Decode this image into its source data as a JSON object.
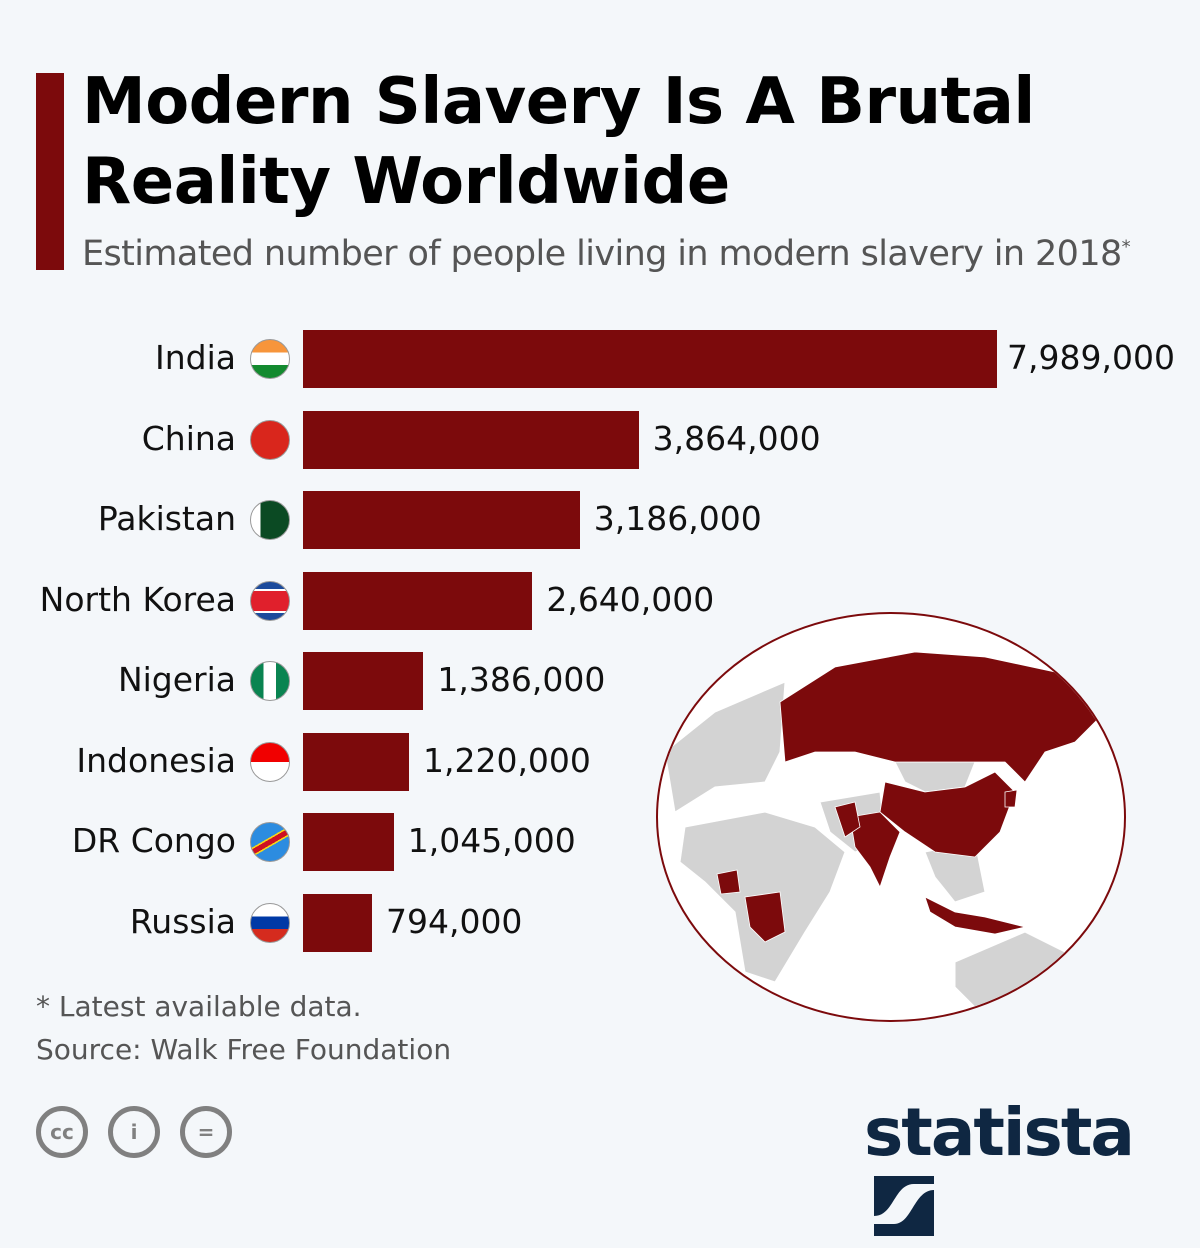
{
  "title": "Modern Slavery Is A Brutal Reality Worldwide",
  "subtitle": "Estimated number of people living in modern slavery in 2018",
  "subtitle_mark": "*",
  "footnote": "* Latest available data.",
  "source": "Source: Walk Free Foundation",
  "brand": "statista",
  "license_icons": [
    "cc-icon",
    "attribution-icon",
    "no-derivatives-icon"
  ],
  "colors": {
    "bar": "#7c0a0c",
    "background": "#f4f7fa",
    "brand": "#0f2742"
  },
  "chart_data": {
    "type": "bar",
    "orientation": "horizontal",
    "categories": [
      "India",
      "China",
      "Pakistan",
      "North Korea",
      "Nigeria",
      "Indonesia",
      "DR Congo",
      "Russia"
    ],
    "values": [
      7989000,
      3864000,
      3186000,
      2640000,
      1386000,
      1220000,
      1045000,
      794000
    ],
    "value_labels": [
      "7,989,000",
      "3,864,000",
      "3,186,000",
      "2,640,000",
      "1,386,000",
      "1,220,000",
      "1,045,000",
      "794,000"
    ],
    "flags": [
      "india-flag",
      "china-flag",
      "pakistan-flag",
      "north-korea-flag",
      "nigeria-flag",
      "indonesia-flag",
      "dr-congo-flag",
      "russia-flag"
    ],
    "grid": false
  }
}
